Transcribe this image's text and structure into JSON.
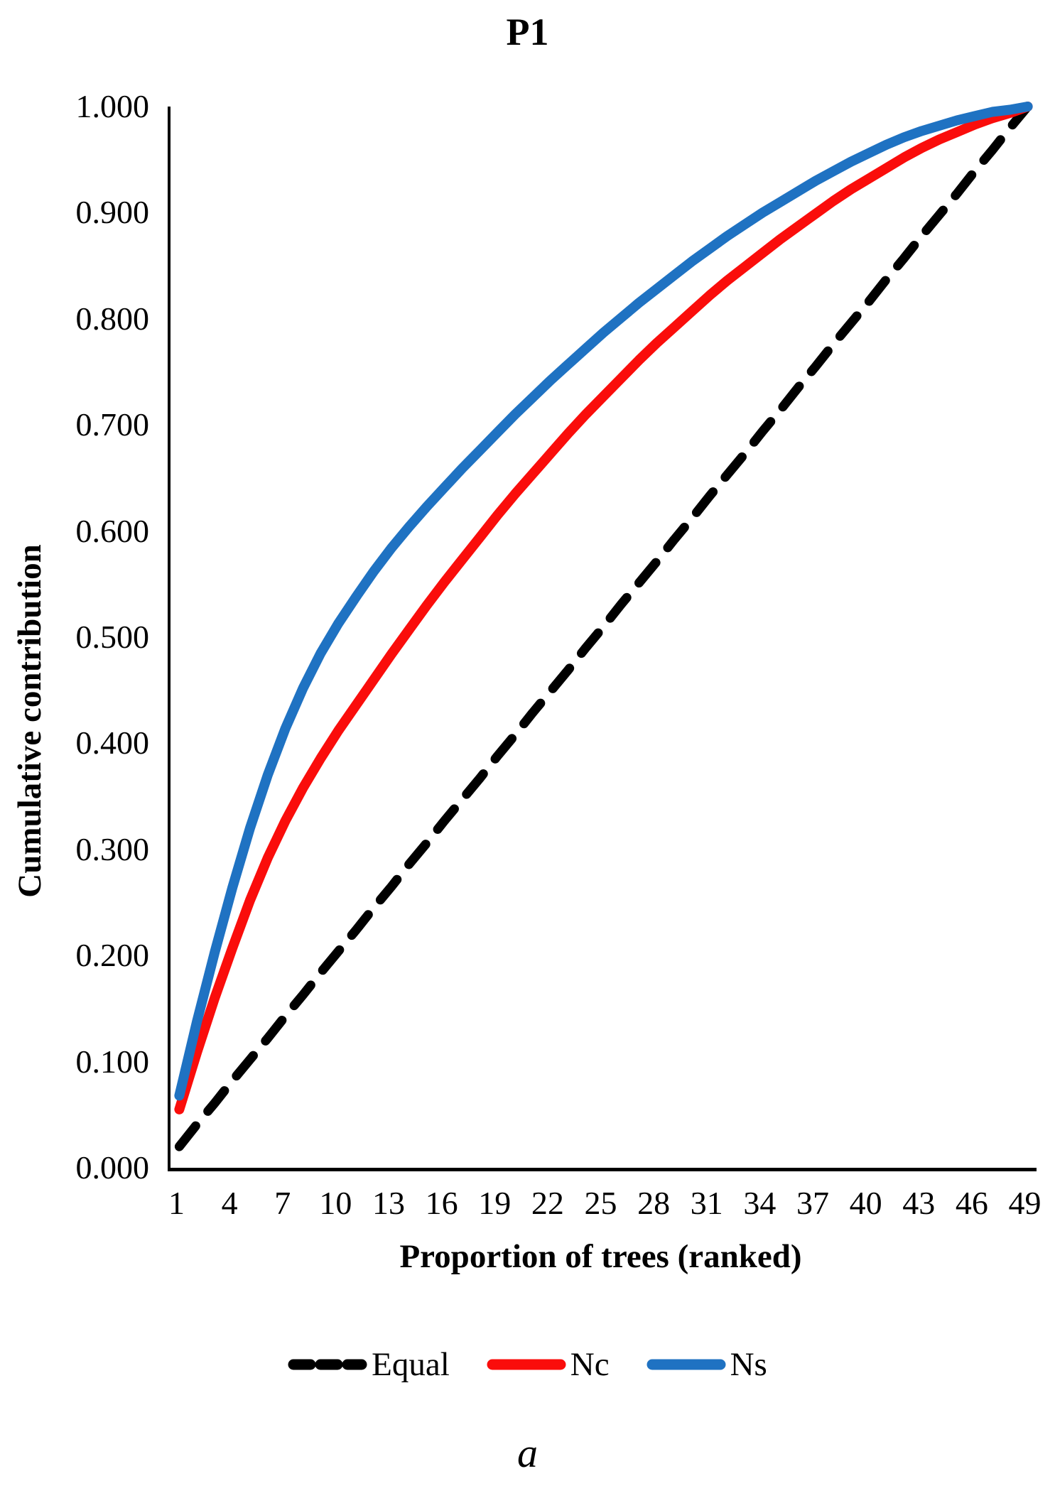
{
  "title": "P1",
  "footnote": "a",
  "y_axis": {
    "title": "Cumulative contribution",
    "tick_labels": [
      "1.000",
      "0.900",
      "0.800",
      "0.700",
      "0.600",
      "0.500",
      "0.400",
      "0.300",
      "0.200",
      "0.100",
      "0.000"
    ],
    "min": 0.0,
    "max": 1.0,
    "step": 0.1
  },
  "x_axis": {
    "title": "Proportion of trees (ranked)",
    "tick_labels": [
      "1",
      "4",
      "7",
      "10",
      "13",
      "16",
      "19",
      "22",
      "25",
      "28",
      "31",
      "34",
      "37",
      "40",
      "43",
      "46",
      "49"
    ],
    "categories_min": 1,
    "categories_max": 49
  },
  "legend": {
    "items": [
      {
        "label": "Equal",
        "color": "#000000",
        "style": "dashed"
      },
      {
        "label": "Nc",
        "color": "#FA0D0B",
        "style": "solid"
      },
      {
        "label": "Ns",
        "color": "#1F72C2",
        "style": "solid"
      }
    ]
  },
  "chart_data": {
    "type": "line",
    "x": [
      1,
      2,
      3,
      4,
      5,
      6,
      7,
      8,
      9,
      10,
      11,
      12,
      13,
      14,
      15,
      16,
      17,
      18,
      19,
      20,
      21,
      22,
      23,
      24,
      25,
      26,
      27,
      28,
      29,
      30,
      31,
      32,
      33,
      34,
      35,
      36,
      37,
      38,
      39,
      40,
      41,
      42,
      43,
      44,
      45,
      46,
      47,
      48,
      49
    ],
    "xlabel": "Proportion of trees (ranked)",
    "ylabel": "Cumulative contribution",
    "ylim": [
      0.0,
      1.0
    ],
    "grid": false,
    "legend_position": "bottom",
    "series": [
      {
        "name": "Equal",
        "color": "#000000",
        "style": "dashed",
        "values": [
          0.02,
          0.041,
          0.061,
          0.082,
          0.102,
          0.122,
          0.143,
          0.163,
          0.184,
          0.204,
          0.224,
          0.245,
          0.265,
          0.286,
          0.306,
          0.327,
          0.347,
          0.367,
          0.388,
          0.408,
          0.429,
          0.449,
          0.469,
          0.49,
          0.51,
          0.531,
          0.551,
          0.571,
          0.592,
          0.612,
          0.633,
          0.653,
          0.673,
          0.694,
          0.714,
          0.735,
          0.755,
          0.776,
          0.796,
          0.816,
          0.837,
          0.857,
          0.878,
          0.898,
          0.918,
          0.939,
          0.959,
          0.98,
          1.0
        ]
      },
      {
        "name": "Nc",
        "color": "#FA0D0B",
        "style": "solid",
        "values": [
          0.055,
          0.109,
          0.16,
          0.207,
          0.252,
          0.292,
          0.327,
          0.358,
          0.386,
          0.412,
          0.436,
          0.46,
          0.484,
          0.507,
          0.53,
          0.552,
          0.573,
          0.594,
          0.615,
          0.635,
          0.654,
          0.673,
          0.692,
          0.71,
          0.727,
          0.744,
          0.761,
          0.777,
          0.792,
          0.807,
          0.822,
          0.836,
          0.849,
          0.862,
          0.875,
          0.887,
          0.899,
          0.911,
          0.922,
          0.932,
          0.942,
          0.952,
          0.961,
          0.969,
          0.976,
          0.983,
          0.989,
          0.994,
          1.0
        ]
      },
      {
        "name": "Ns",
        "color": "#1F72C2",
        "style": "solid",
        "values": [
          0.068,
          0.138,
          0.203,
          0.264,
          0.32,
          0.37,
          0.414,
          0.452,
          0.485,
          0.513,
          0.538,
          0.562,
          0.584,
          0.604,
          0.623,
          0.641,
          0.659,
          0.676,
          0.693,
          0.71,
          0.726,
          0.742,
          0.757,
          0.772,
          0.787,
          0.801,
          0.815,
          0.828,
          0.841,
          0.854,
          0.866,
          0.878,
          0.889,
          0.9,
          0.91,
          0.92,
          0.93,
          0.939,
          0.948,
          0.956,
          0.964,
          0.971,
          0.977,
          0.982,
          0.987,
          0.991,
          0.995,
          0.997,
          1.0
        ]
      }
    ]
  }
}
